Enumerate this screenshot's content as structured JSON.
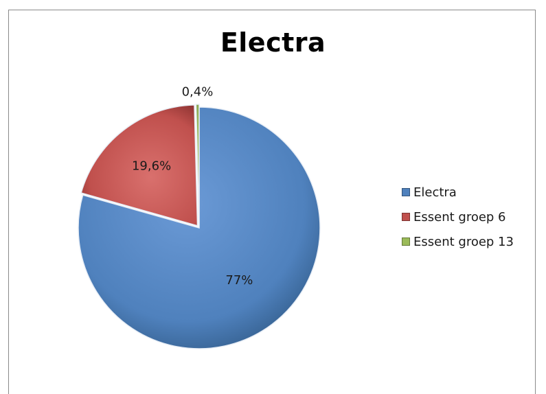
{
  "chart_data": {
    "type": "pie",
    "title": "Electra",
    "categories": [
      "Electra",
      "Essent groep 6",
      "Essent groep 13"
    ],
    "values": [
      77,
      19.6,
      0.4
    ],
    "data_labels": [
      "77%",
      "19,6%",
      "0,4%"
    ],
    "colors": [
      "#4f81bd",
      "#c0504d",
      "#9bbb59"
    ],
    "legend_position": "right",
    "exploded": true
  }
}
